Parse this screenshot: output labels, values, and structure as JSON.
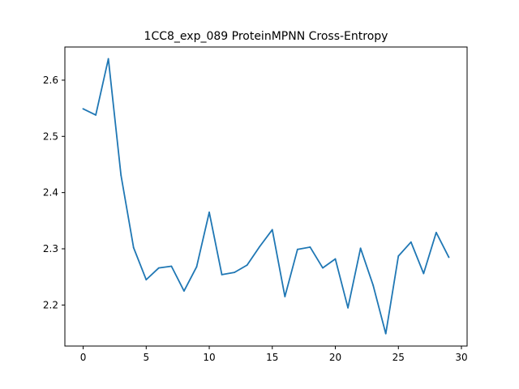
{
  "chart_data": {
    "type": "line",
    "title": "1CC8_exp_089 ProteinMPNN Cross-Entropy",
    "xlabel": "",
    "ylabel": "",
    "xlim": [
      -1.45,
      30.45
    ],
    "ylim": [
      2.127,
      2.659
    ],
    "xticks": [
      0,
      5,
      10,
      15,
      20,
      25,
      30
    ],
    "yticks": [
      2.2,
      2.3,
      2.4,
      2.5,
      2.6
    ],
    "xtick_labels": [
      "0",
      "5",
      "10",
      "15",
      "20",
      "25",
      "30"
    ],
    "ytick_labels": [
      "2.2",
      "2.3",
      "2.4",
      "2.5",
      "2.6"
    ],
    "grid": false,
    "colors": {
      "series": "#1f77b4"
    },
    "series": [
      {
        "name": "",
        "x": [
          0,
          1,
          2,
          3,
          4,
          5,
          6,
          7,
          8,
          9,
          10,
          11,
          12,
          13,
          14,
          15,
          16,
          17,
          18,
          19,
          20,
          21,
          22,
          23,
          24,
          25,
          26,
          27,
          28,
          29
        ],
        "values": [
          2.549,
          2.538,
          2.638,
          2.431,
          2.302,
          2.245,
          2.266,
          2.269,
          2.225,
          2.268,
          2.365,
          2.254,
          2.258,
          2.271,
          2.304,
          2.334,
          2.215,
          2.299,
          2.303,
          2.266,
          2.282,
          2.195,
          2.301,
          2.235,
          2.149,
          2.287,
          2.312,
          2.256,
          2.329,
          2.285
        ]
      }
    ]
  }
}
